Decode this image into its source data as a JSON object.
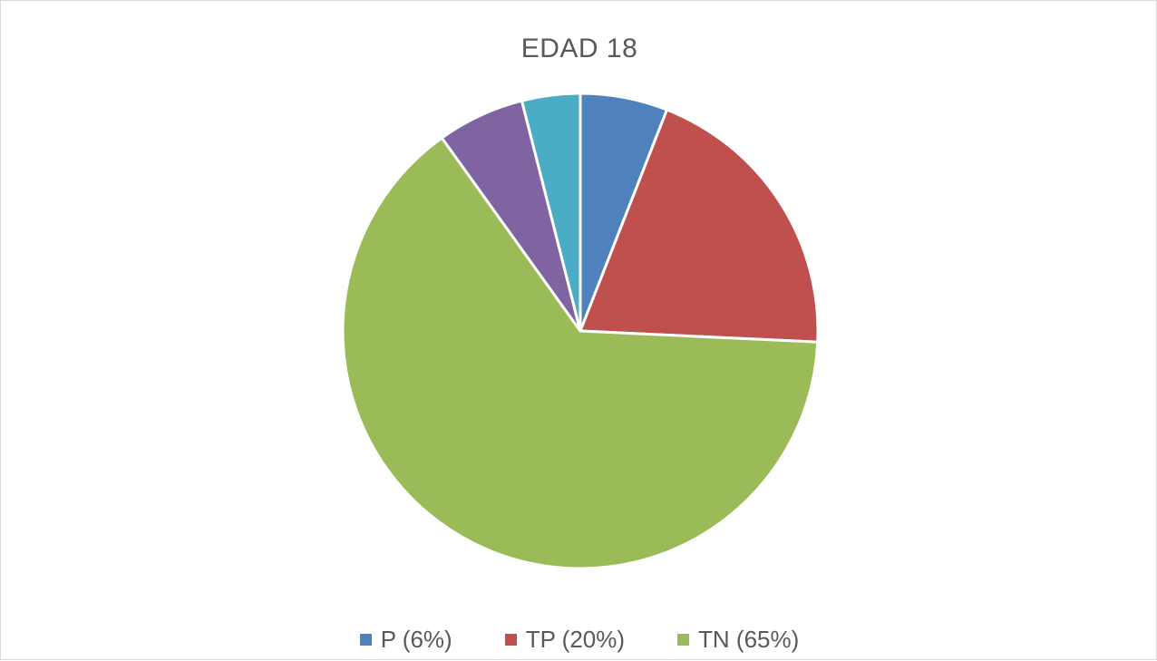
{
  "chart_data": {
    "type": "pie",
    "title": "EDAD 18",
    "slices": [
      {
        "label": "P (6%)",
        "value": 6,
        "color": "#4f81bd",
        "show_in_legend": true
      },
      {
        "label": "TP (20%)",
        "value": 20,
        "color": "#c0504d",
        "show_in_legend": true
      },
      {
        "label": "TN (65%)",
        "value": 65,
        "color": "#9bbb59",
        "show_in_legend": true
      },
      {
        "label": "",
        "value": 6,
        "color": "#8064a2",
        "show_in_legend": false
      },
      {
        "label": "",
        "value": 4,
        "color": "#4bacc6",
        "show_in_legend": false
      }
    ],
    "legend_position": "bottom"
  }
}
